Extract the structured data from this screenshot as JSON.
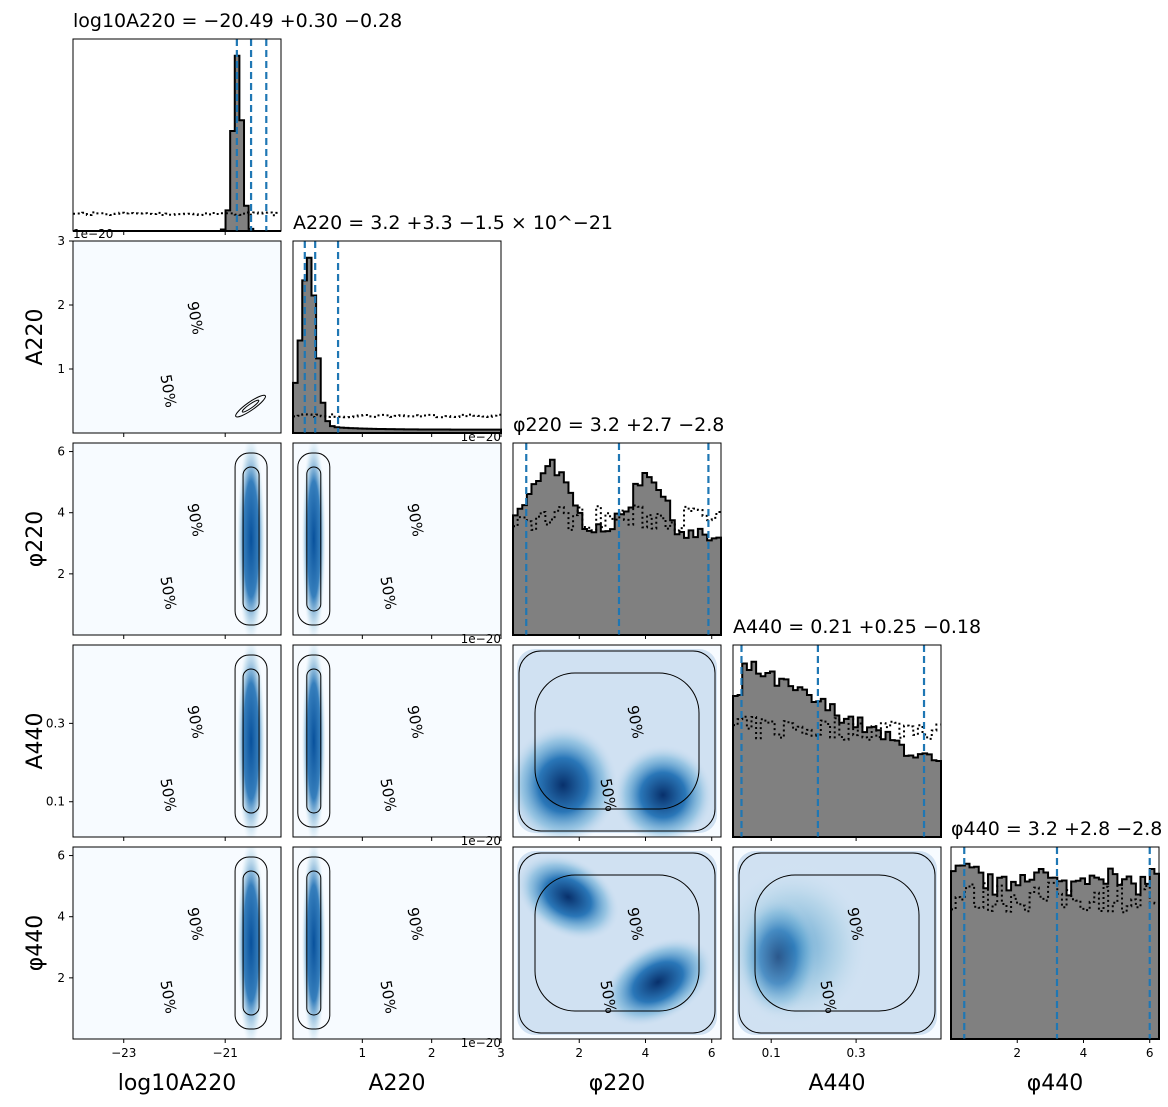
{
  "chart_data": {
    "type": "corner",
    "params": [
      {
        "key": "log10A220",
        "axis_label": "log10A220",
        "title": "log10A220 = −20.49 +0.30 −0.28",
        "range": [
          -24,
          -19.9
        ],
        "ticks": [
          -23,
          -21
        ],
        "tick_labels": [
          "−23",
          "−21"
        ],
        "median": -20.49,
        "lo": -20.77,
        "hi": -20.19
      },
      {
        "key": "A220",
        "axis_label": "A220",
        "title": "A220 = 3.2 +3.3 −1.5 × 10^−21",
        "range": [
          0,
          3.0
        ],
        "ticks": [
          1,
          2,
          3
        ],
        "tick_labels": [
          "1",
          "2",
          "3"
        ],
        "offset": "1e−20",
        "median": 0.32,
        "lo": 0.17,
        "hi": 0.65
      },
      {
        "key": "phi220",
        "axis_label": "φ220",
        "title": "φ220 = 3.2 +2.7 −2.8",
        "range": [
          0,
          6.28
        ],
        "ticks": [
          2,
          4,
          6
        ],
        "tick_labels": [
          "2",
          "4",
          "6"
        ],
        "median": 3.2,
        "lo": 0.4,
        "hi": 5.9
      },
      {
        "key": "A440",
        "axis_label": "A440",
        "title": "A440 = 0.21 +0.25 −0.18",
        "range": [
          0.01,
          0.5
        ],
        "ticks": [
          0.1,
          0.3
        ],
        "tick_labels": [
          "0.1",
          "0.3"
        ],
        "median": 0.21,
        "lo": 0.03,
        "hi": 0.46
      },
      {
        "key": "phi440",
        "axis_label": "φ440",
        "title": "φ440 = 3.2 +2.8 −2.8",
        "range": [
          0,
          6.28
        ],
        "ticks": [
          2,
          4,
          6
        ],
        "tick_labels": [
          "2",
          "4",
          "6"
        ],
        "median": 3.2,
        "lo": 0.4,
        "hi": 6.0
      }
    ],
    "y_ticks": {
      "A220": {
        "ticks": [
          1,
          2,
          3
        ],
        "labels": [
          "1",
          "2",
          "3"
        ],
        "offset": "1e−20"
      },
      "phi220": {
        "ticks": [
          2,
          4,
          6
        ],
        "labels": [
          "2",
          "4",
          "6"
        ]
      },
      "A440": {
        "ticks": [
          0.1,
          0.3
        ],
        "labels": [
          "0.1",
          "0.3"
        ]
      },
      "phi440": {
        "ticks": [
          2,
          4,
          6
        ],
        "labels": [
          "2",
          "4",
          "6"
        ]
      }
    },
    "contour_levels": [
      "50%",
      "90%"
    ],
    "colormap": "Blues",
    "histogram_fill": "#808080",
    "quantile_line_color": "#1f77b4",
    "prior_line_style": "dotted"
  }
}
